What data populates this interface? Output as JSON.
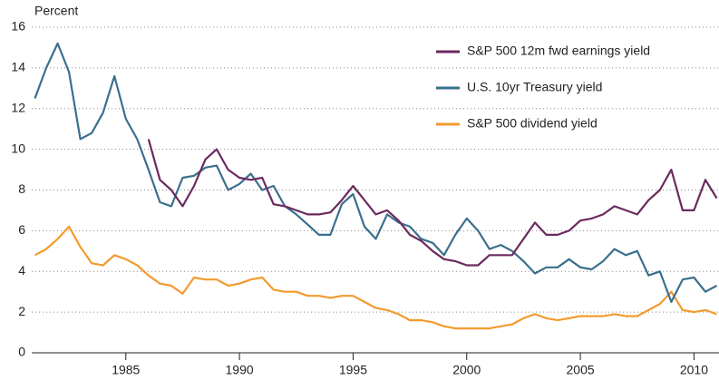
{
  "chart_data": {
    "type": "line",
    "y_label": "Percent",
    "x": [
      1981.0,
      1981.5,
      1982.0,
      1982.5,
      1983.0,
      1983.5,
      1984.0,
      1984.5,
      1985.0,
      1985.5,
      1986.0,
      1986.5,
      1987.0,
      1987.5,
      1988.0,
      1988.5,
      1989.0,
      1989.5,
      1990.0,
      1990.5,
      1991.0,
      1991.5,
      1992.0,
      1992.5,
      1993.0,
      1993.5,
      1994.0,
      1994.5,
      1995.0,
      1995.5,
      1996.0,
      1996.5,
      1997.0,
      1997.5,
      1998.0,
      1998.5,
      1999.0,
      1999.5,
      2000.0,
      2000.5,
      2001.0,
      2001.5,
      2002.0,
      2002.5,
      2003.0,
      2003.5,
      2004.0,
      2004.5,
      2005.0,
      2005.5,
      2006.0,
      2006.5,
      2007.0,
      2007.5,
      2008.0,
      2008.5,
      2009.0,
      2009.5,
      2010.0,
      2010.5,
      2011.0
    ],
    "series": [
      {
        "name": "S&P 500 12m fwd earnings yield",
        "color": "#6b2a5e",
        "values": [
          null,
          null,
          null,
          null,
          null,
          null,
          null,
          null,
          null,
          null,
          10.5,
          8.5,
          8.0,
          7.2,
          8.2,
          9.5,
          10.0,
          9.0,
          8.6,
          8.5,
          8.6,
          7.3,
          7.2,
          7.0,
          6.8,
          6.8,
          6.9,
          7.5,
          8.2,
          7.5,
          6.8,
          7.0,
          6.5,
          5.8,
          5.5,
          5.0,
          4.6,
          4.5,
          4.3,
          4.3,
          4.8,
          4.8,
          4.8,
          5.6,
          6.4,
          5.8,
          5.8,
          6.0,
          6.5,
          6.6,
          6.8,
          7.2,
          7.0,
          6.8,
          7.5,
          8.0,
          9.0,
          7.0,
          7.0,
          8.5,
          7.6
        ]
      },
      {
        "name": "U.S. 10yr Treasury yield",
        "color": "#3b6f8e",
        "values": [
          12.5,
          14.0,
          15.2,
          13.8,
          10.5,
          10.8,
          11.8,
          13.6,
          11.5,
          10.5,
          9.0,
          7.4,
          7.2,
          8.6,
          8.7,
          9.1,
          9.2,
          8.0,
          8.3,
          8.8,
          8.0,
          8.2,
          7.2,
          6.8,
          6.3,
          5.8,
          5.8,
          7.3,
          7.8,
          6.2,
          5.6,
          6.8,
          6.4,
          6.2,
          5.6,
          5.4,
          4.8,
          5.8,
          6.6,
          6.0,
          5.1,
          5.3,
          5.0,
          4.5,
          3.9,
          4.2,
          4.2,
          4.6,
          4.2,
          4.1,
          4.5,
          5.1,
          4.8,
          5.0,
          3.8,
          4.0,
          2.5,
          3.6,
          3.7,
          3.0,
          3.3
        ]
      },
      {
        "name": "S&P 500 dividend yield",
        "color": "#f39a2e",
        "values": [
          4.8,
          5.1,
          5.6,
          6.2,
          5.2,
          4.4,
          4.3,
          4.8,
          4.6,
          4.3,
          3.8,
          3.4,
          3.3,
          2.9,
          3.7,
          3.6,
          3.6,
          3.3,
          3.4,
          3.6,
          3.7,
          3.1,
          3.0,
          3.0,
          2.8,
          2.8,
          2.7,
          2.8,
          2.8,
          2.5,
          2.2,
          2.1,
          1.9,
          1.6,
          1.6,
          1.5,
          1.3,
          1.2,
          1.2,
          1.2,
          1.2,
          1.3,
          1.4,
          1.7,
          1.9,
          1.7,
          1.6,
          1.7,
          1.8,
          1.8,
          1.8,
          1.9,
          1.8,
          1.8,
          2.1,
          2.4,
          3.0,
          2.1,
          2.0,
          2.1,
          1.9
        ]
      }
    ],
    "xlim": [
      1980.86,
      2011.1
    ],
    "xticks": [
      1985,
      1990,
      1995,
      2000,
      2005,
      2010
    ],
    "ylim": [
      0,
      16
    ],
    "yticks": [
      0,
      2,
      4,
      6,
      8,
      10,
      12,
      14,
      16
    ],
    "grid": true
  }
}
